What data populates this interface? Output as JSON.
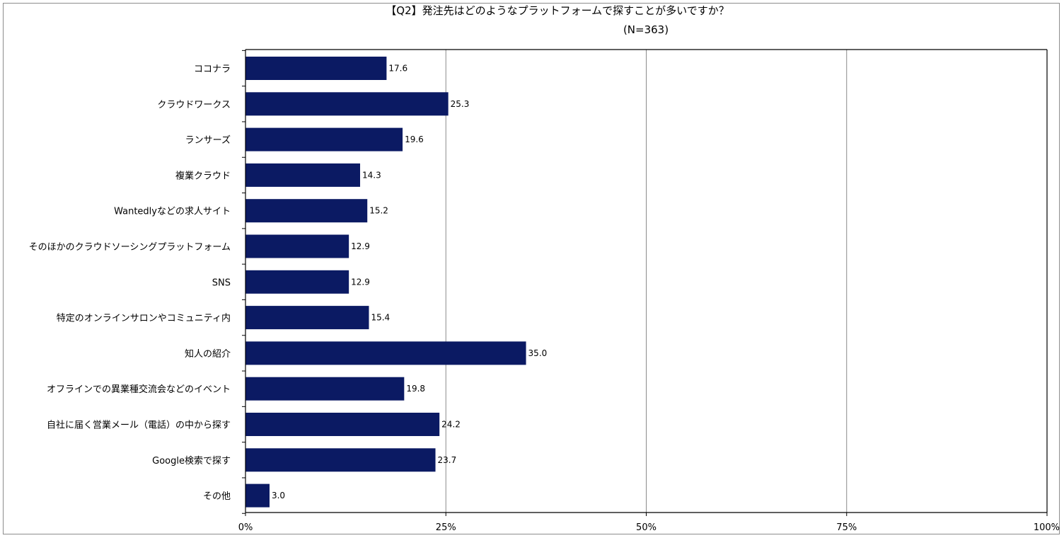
{
  "chart_data": {
    "type": "bar",
    "orientation": "horizontal",
    "title": "【Q2】発注先はどのようなプラットフォームで探すことが多いですか？",
    "subtitle": "(N=363)",
    "categories": [
      "ココナラ",
      "クラウドワークス",
      "ランサーズ",
      "複業クラウド",
      "Wantedlyなどの求人サイト",
      "そのほかのクラウドソーシングプラットフォーム",
      "SNS",
      "特定のオンラインサロンやコミュニティ内",
      "知人の紹介",
      "オフラインでの異業種交流会などのイベント",
      "自社に届く営業メール（電話）の中から探す",
      "Google検索で探す",
      "その他"
    ],
    "values": [
      17.6,
      25.3,
      19.6,
      14.3,
      15.2,
      12.9,
      12.9,
      15.4,
      35.0,
      19.8,
      24.2,
      23.7,
      3.0
    ],
    "value_labels": [
      "17.6",
      "25.3",
      "19.6",
      "14.3",
      "15.2",
      "12.9",
      "12.9",
      "15.4",
      "35.0",
      "19.8",
      "24.2",
      "23.7",
      "3.0"
    ],
    "xlim": [
      0,
      100
    ],
    "xticks": [
      0,
      25,
      50,
      75,
      100
    ],
    "xtick_labels": [
      "0%",
      "25%",
      "50%",
      "75%",
      "100%"
    ],
    "grid": true,
    "bar_color": "#0b1a63",
    "grid_color": "#8a8a8a"
  }
}
